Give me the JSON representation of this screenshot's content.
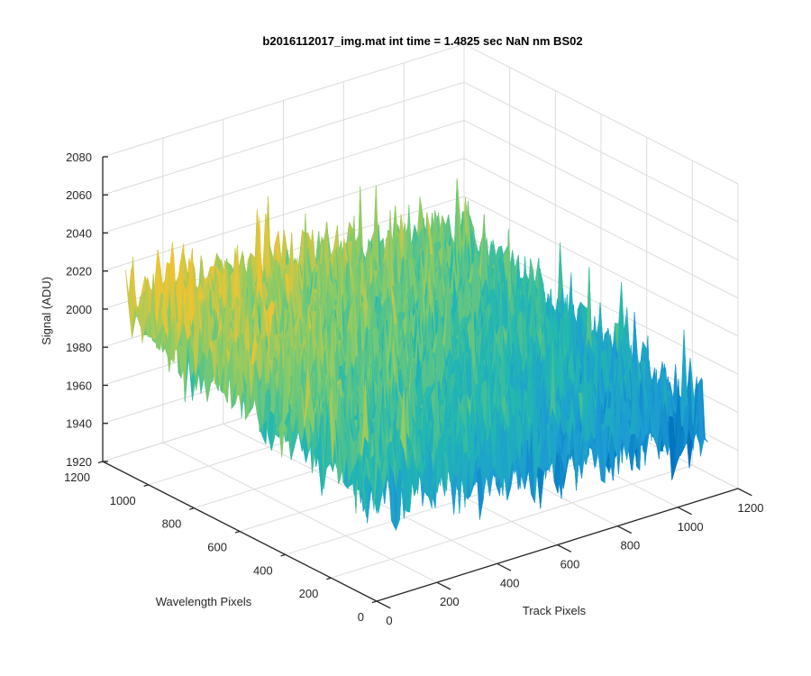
{
  "chart_data": {
    "type": "surface",
    "title": "b2016112017_img.mat int time = 1.4825 sec  NaN nm BS02",
    "xlabel": "Track Pixels",
    "ylabel": "Wavelength Pixels",
    "zlabel": "Signal (ADU)",
    "xlim": [
      0,
      1200
    ],
    "ylim": [
      0,
      1200
    ],
    "zlim": [
      1920,
      2080
    ],
    "x_ticks": [
      "0",
      "200",
      "400",
      "600",
      "800",
      "1000",
      "1200"
    ],
    "y_ticks": [
      "0",
      "200",
      "400",
      "600",
      "800",
      "1000",
      "1200"
    ],
    "z_ticks": [
      "1920",
      "1940",
      "1960",
      "1980",
      "2000",
      "2020",
      "2040",
      "2060",
      "2080"
    ],
    "x_tick_values": [
      0,
      200,
      400,
      600,
      800,
      1000,
      1200
    ],
    "y_tick_values": [
      0,
      200,
      400,
      600,
      800,
      1000,
      1200
    ],
    "z_tick_values": [
      1920,
      1940,
      1960,
      1980,
      2000,
      2020,
      2040,
      2060,
      2080
    ],
    "data_extent": {
      "x": [
        0,
        1100
      ],
      "y": [
        0,
        1100
      ]
    },
    "surface_profile": {
      "description": "noisy dark frame; signal decreases from low-track/high-wavelength corner toward high-track/low-wavelength corner",
      "corner_means": {
        "x0_y1100": 2010,
        "x1100_y1100": 1990,
        "x0_y0": 1980,
        "x1100_y0": 1958
      },
      "noise_amplitude": 25,
      "hot_band": {
        "y": 570,
        "value": 2005
      }
    },
    "colormap": [
      "#0072bd",
      "#1d9bd4",
      "#23b8b0",
      "#7ecb6e",
      "#e8c637",
      "#f8ba1e"
    ],
    "grid": true,
    "view": {
      "azimuth": -37.5,
      "elevation": 30
    }
  }
}
